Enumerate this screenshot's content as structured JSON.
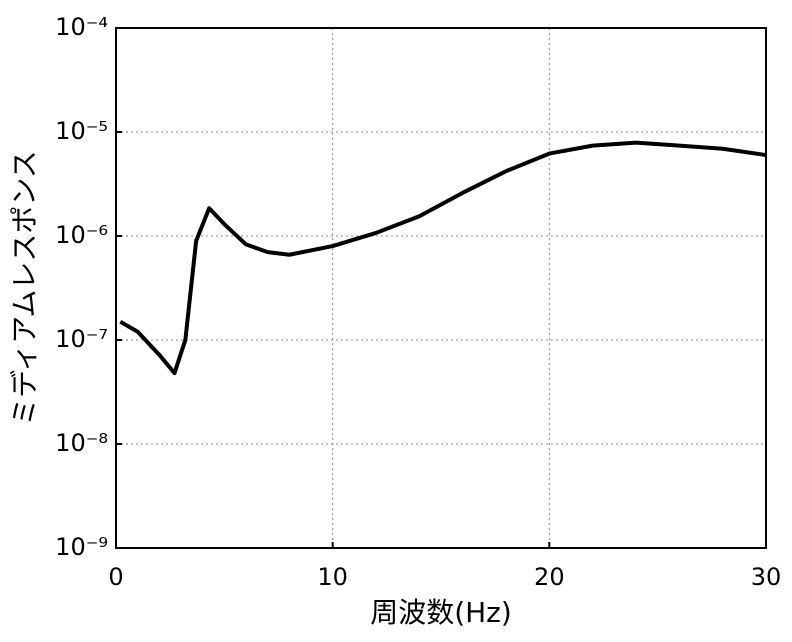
{
  "chart_data": {
    "type": "line",
    "xlabel": "周波数(Hz)",
    "ylabel": "ミディアムレスポンス",
    "x": [
      0.2,
      1,
      2,
      2.7,
      3.2,
      3.7,
      4.3,
      5,
      6,
      7,
      8,
      10,
      12,
      14,
      16,
      18,
      20,
      22,
      24,
      26,
      28,
      30
    ],
    "series": [
      {
        "color": "#000000",
        "values": [
          1.5e-07,
          1.2e-07,
          7.2e-08,
          4.8e-08,
          1e-07,
          9e-07,
          1.85e-06,
          1.3e-06,
          8.3e-07,
          7e-07,
          6.6e-07,
          8e-07,
          1.07e-06,
          1.55e-06,
          2.6e-06,
          4.2e-06,
          6.2e-06,
          7.4e-06,
          7.9e-06,
          7.4e-06,
          6.9e-06,
          6e-06
        ]
      }
    ],
    "xlim": [
      0,
      30
    ],
    "xticks": [
      0,
      10,
      20,
      30
    ],
    "ylim": [
      1e-09,
      0.0001
    ],
    "ylog": true,
    "yticks": [
      {
        "value": 1e-09,
        "label": "10⁻⁹"
      },
      {
        "value": 1e-08,
        "label": "10⁻⁸"
      },
      {
        "value": 1e-07,
        "label": "10⁻⁷"
      },
      {
        "value": 1e-06,
        "label": "10⁻⁶"
      },
      {
        "value": 1e-05,
        "label": "10⁻⁵"
      },
      {
        "value": 0.0001,
        "label": "10⁻⁴"
      }
    ],
    "grid": true
  }
}
